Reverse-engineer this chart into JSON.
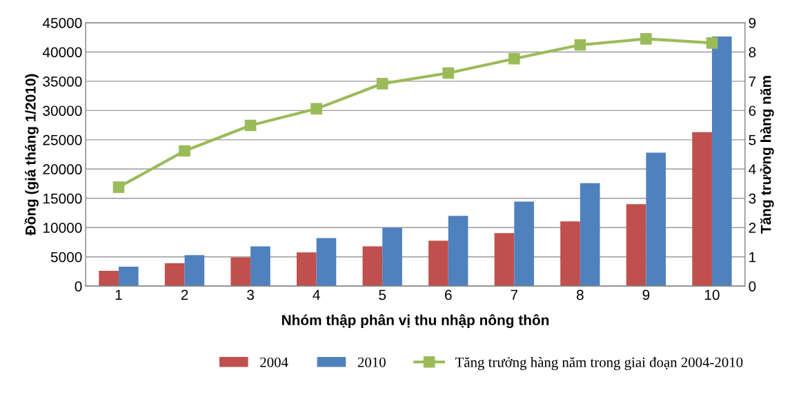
{
  "chart_data": {
    "type": "bar",
    "categories": [
      "1",
      "2",
      "3",
      "4",
      "5",
      "6",
      "7",
      "8",
      "9",
      "10"
    ],
    "xlabel": "Nhóm thập phân vị thu nhập nông thôn",
    "ylabel": "Đồng (giá tháng 1/2010)",
    "y2label": "Tăng trưởng hàng năm",
    "series": [
      {
        "name": "2004",
        "color": "#c0504d",
        "values": [
          2600,
          3900,
          4900,
          5750,
          6800,
          7750,
          9050,
          11050,
          14000,
          26300
        ]
      },
      {
        "name": "2010",
        "color": "#4f81bd",
        "values": [
          3300,
          5300,
          6800,
          8200,
          10000,
          12000,
          14450,
          17600,
          22800,
          42650
        ]
      },
      {
        "name": "Tăng trưởng hàng năm trong giai đoạn 2004-2010",
        "type": "line",
        "axis": "y2",
        "color": "#9bbb59",
        "marker": "square",
        "values": [
          3.38,
          4.62,
          5.49,
          6.06,
          6.92,
          7.28,
          7.77,
          8.24,
          8.45,
          8.31
        ]
      }
    ],
    "ylim": [
      0,
      45000
    ],
    "yticks": [
      0,
      5000,
      10000,
      15000,
      20000,
      25000,
      30000,
      35000,
      40000,
      45000
    ],
    "y2lim": [
      0,
      9
    ],
    "y2ticks": [
      0,
      1,
      2,
      3,
      4,
      5,
      6,
      7,
      8,
      9
    ],
    "grid": "y",
    "legend": "bottom"
  }
}
